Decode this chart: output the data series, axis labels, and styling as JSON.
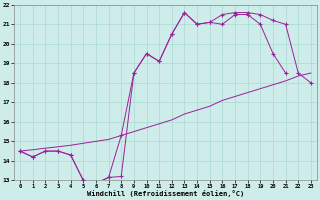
{
  "xlabel": "Windchill (Refroidissement éolien,°C)",
  "xlim": [
    -0.5,
    23.5
  ],
  "ylim": [
    13,
    22
  ],
  "xticks": [
    0,
    1,
    2,
    3,
    4,
    5,
    6,
    7,
    8,
    9,
    10,
    11,
    12,
    13,
    14,
    15,
    16,
    17,
    18,
    19,
    20,
    21,
    22,
    23
  ],
  "yticks": [
    13,
    14,
    15,
    16,
    17,
    18,
    19,
    20,
    21,
    22
  ],
  "bg_color": "#ceecea",
  "grid_color": "#a8d8d4",
  "line_color": "#992299",
  "line1_y": [
    14.5,
    14.2,
    14.5,
    14.5,
    14.3,
    13.0,
    12.85,
    13.15,
    13.2,
    18.5,
    19.5,
    19.1,
    20.5,
    21.6,
    21.0,
    21.1,
    21.0,
    21.5,
    21.5,
    21.0,
    19.5,
    18.5,
    null,
    null
  ],
  "line2_y": [
    14.5,
    14.2,
    14.5,
    14.5,
    14.3,
    13.0,
    12.85,
    13.15,
    15.3,
    18.5,
    19.5,
    19.1,
    20.5,
    21.6,
    21.0,
    21.1,
    21.5,
    21.6,
    21.6,
    21.5,
    21.2,
    21.0,
    18.5,
    18.0
  ],
  "line3_y": [
    14.5,
    14.57,
    14.65,
    14.72,
    14.8,
    14.9,
    15.0,
    15.1,
    15.3,
    15.5,
    15.7,
    15.9,
    16.1,
    16.4,
    16.6,
    16.8,
    17.1,
    17.3,
    17.5,
    17.7,
    17.9,
    18.1,
    18.35,
    18.5
  ]
}
